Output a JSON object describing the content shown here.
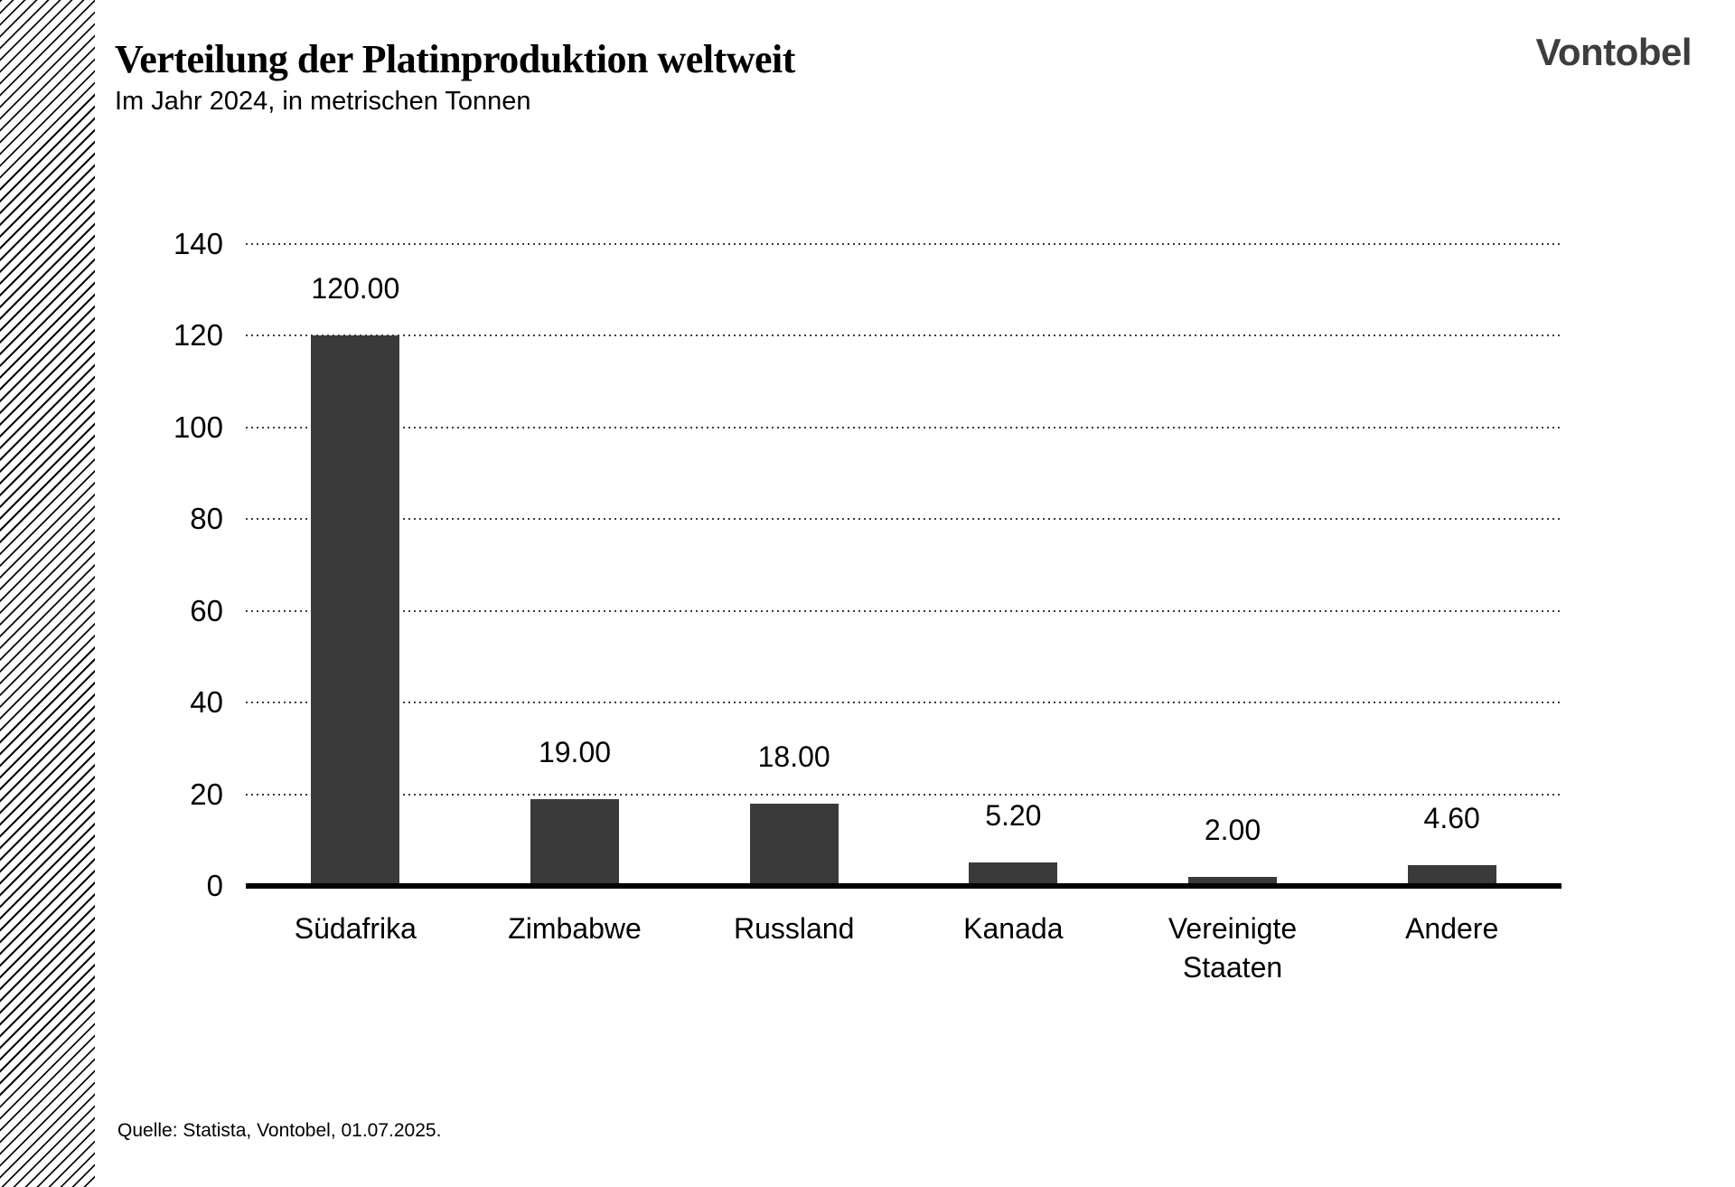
{
  "page": {
    "title": "Verteilung der Platinproduktion weltweit",
    "subtitle": "Im Jahr 2024, in metrischen Tonnen",
    "logo": "Vontobel",
    "source": "Quelle: Statista, Vontobel, 01.07.2025."
  },
  "colors": {
    "bar": "#3a3a3a",
    "axis_line": "#000000",
    "gridline": "#3c3c3c",
    "logo": "#3d3d3d",
    "hatch": "#0a0a0a",
    "background": "#ffffff"
  },
  "chart_data": {
    "type": "bar",
    "title": "Verteilung der Platinproduktion weltweit",
    "subtitle": "Im Jahr 2024, in metrischen Tonnen",
    "categories": [
      "Südafrika",
      "Zimbabwe",
      "Russland",
      "Kanada",
      "Vereinigte Staaten",
      "Andere"
    ],
    "values": [
      120,
      19,
      18,
      5.2,
      2,
      4.6
    ],
    "value_labels": [
      "120.00",
      "19.00",
      "18.00",
      "5.20",
      "2.00",
      "4.60"
    ],
    "xlabel": "",
    "ylabel": "",
    "unit": "metrische Tonnen",
    "year": "2024",
    "ylim": [
      0,
      140
    ],
    "ytick_step": 20,
    "ytick_labels": [
      "0",
      "20",
      "40",
      "60",
      "80",
      "100",
      "120",
      "140"
    ],
    "grid": "horizontal-dotted",
    "legend": "none",
    "bar_color": "#3a3a3a"
  }
}
